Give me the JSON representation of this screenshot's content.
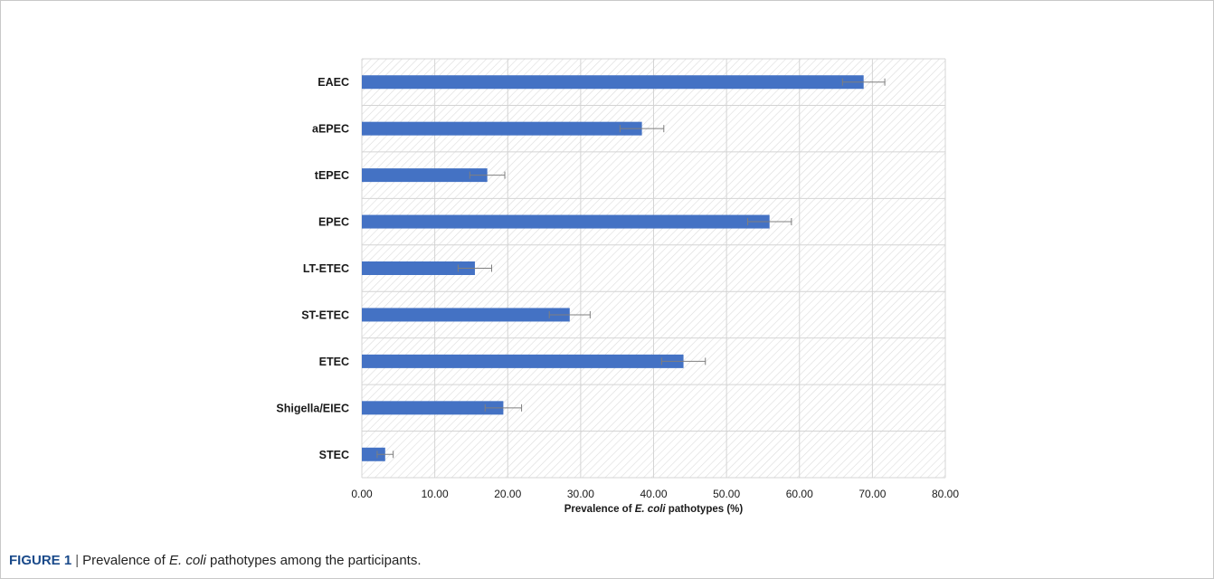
{
  "chart_data": {
    "type": "bar",
    "orientation": "horizontal",
    "categories": [
      "EAEC",
      "aEPEC",
      "tEPEC",
      "EPEC",
      "LT-ETEC",
      "ST-ETEC",
      "ETEC",
      "Shigella/EIEC",
      "STEC"
    ],
    "values": [
      68.8,
      38.4,
      17.2,
      55.9,
      15.5,
      28.5,
      44.1,
      19.4,
      3.2
    ],
    "error": [
      2.9,
      3.0,
      2.4,
      3.0,
      2.3,
      2.8,
      3.0,
      2.5,
      1.1
    ],
    "xlim": [
      0,
      80
    ],
    "xticks": [
      0,
      10,
      20,
      30,
      40,
      50,
      60,
      70,
      80
    ],
    "xtick_labels": [
      "0.00",
      "10.00",
      "20.00",
      "30.00",
      "40.00",
      "50.00",
      "60.00",
      "70.00",
      "80.00"
    ],
    "xlabel_prefix": "Prevalence of ",
    "xlabel_italic": "E. coli",
    "xlabel_suffix": " pathotypes (%)",
    "bar_color": "#4472c4",
    "grid": true,
    "legend": "none"
  },
  "caption": {
    "figure_label": "FIGURE 1",
    "separator": "|",
    "text_before": "Prevalence of ",
    "text_italic": "E. coli",
    "text_after": " pathotypes among the participants."
  }
}
